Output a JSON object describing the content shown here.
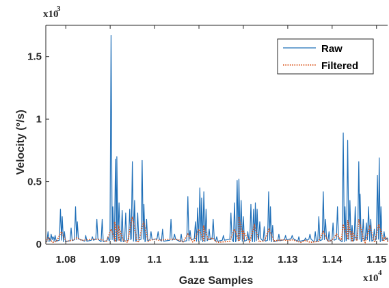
{
  "chart_data": {
    "type": "line",
    "xlabel": "Gaze Samples",
    "ylabel": "Velocity (°/s)",
    "x_multiplier": {
      "base": "x10",
      "exp": "4"
    },
    "y_multiplier": {
      "base": "x10",
      "exp": "3"
    },
    "xlim": [
      1.0755,
      1.1525
    ],
    "ylim": [
      0,
      1.75
    ],
    "x_ticks": [
      {
        "value": 1.08,
        "label": "1.08"
      },
      {
        "value": 1.09,
        "label": "1.09"
      },
      {
        "value": 1.1,
        "label": "1.1"
      },
      {
        "value": 1.11,
        "label": "1.11"
      },
      {
        "value": 1.12,
        "label": "1.12"
      },
      {
        "value": 1.13,
        "label": "1.13"
      },
      {
        "value": 1.14,
        "label": "1.14"
      },
      {
        "value": 1.15,
        "label": "1.15"
      }
    ],
    "y_ticks": [
      {
        "value": 0,
        "label": "0"
      },
      {
        "value": 0.5,
        "label": "0.5"
      },
      {
        "value": 1,
        "label": "1"
      },
      {
        "value": 1.5,
        "label": "1.5"
      }
    ],
    "legend_position": "top-right",
    "series": [
      {
        "name": "Raw",
        "color": "#1f6fb8",
        "style": "solid",
        "peaks": [
          [
            1.076,
            0.1
          ],
          [
            1.0763,
            0.05
          ],
          [
            1.0767,
            0.08
          ],
          [
            1.0771,
            0.06
          ],
          [
            1.0776,
            0.07
          ],
          [
            1.0788,
            0.28
          ],
          [
            1.0792,
            0.22
          ],
          [
            1.0797,
            0.1
          ],
          [
            1.0812,
            0.13
          ],
          [
            1.0822,
            0.3
          ],
          [
            1.0826,
            0.18
          ],
          [
            1.0845,
            0.07
          ],
          [
            1.086,
            0.06
          ],
          [
            1.087,
            0.2
          ],
          [
            1.0882,
            0.2
          ],
          [
            1.0895,
            0.06
          ],
          [
            1.0902,
            1.67
          ],
          [
            1.0906,
            0.3
          ],
          [
            1.0912,
            0.68
          ],
          [
            1.0915,
            0.7
          ],
          [
            1.092,
            0.33
          ],
          [
            1.0927,
            0.27
          ],
          [
            1.0935,
            0.25
          ],
          [
            1.0944,
            0.28
          ],
          [
            1.095,
            0.66
          ],
          [
            1.0955,
            0.35
          ],
          [
            1.0962,
            0.25
          ],
          [
            1.0972,
            0.67
          ],
          [
            1.0976,
            0.32
          ],
          [
            1.0982,
            0.2
          ],
          [
            1.0992,
            0.1
          ],
          [
            1.1008,
            0.1
          ],
          [
            1.1018,
            0.12
          ],
          [
            1.1037,
            0.2
          ],
          [
            1.1045,
            0.08
          ],
          [
            1.106,
            0.08
          ],
          [
            1.1075,
            0.38
          ],
          [
            1.108,
            0.11
          ],
          [
            1.1092,
            0.18
          ],
          [
            1.1097,
            0.29
          ],
          [
            1.1102,
            0.45
          ],
          [
            1.1106,
            0.37
          ],
          [
            1.1111,
            0.42
          ],
          [
            1.1116,
            0.28
          ],
          [
            1.1123,
            0.12
          ],
          [
            1.1132,
            0.2
          ],
          [
            1.114,
            0.06
          ],
          [
            1.1155,
            0.07
          ],
          [
            1.1172,
            0.25
          ],
          [
            1.118,
            0.33
          ],
          [
            1.1186,
            0.51
          ],
          [
            1.119,
            0.52
          ],
          [
            1.1195,
            0.35
          ],
          [
            1.12,
            0.22
          ],
          [
            1.121,
            0.1
          ],
          [
            1.1217,
            0.32
          ],
          [
            1.1223,
            0.28
          ],
          [
            1.1227,
            0.33
          ],
          [
            1.1231,
            0.28
          ],
          [
            1.1237,
            0.18
          ],
          [
            1.1247,
            0.14
          ],
          [
            1.1257,
            0.42
          ],
          [
            1.1261,
            0.3
          ],
          [
            1.1266,
            0.15
          ],
          [
            1.128,
            0.08
          ],
          [
            1.1295,
            0.07
          ],
          [
            1.131,
            0.07
          ],
          [
            1.1325,
            0.06
          ],
          [
            1.134,
            0.05
          ],
          [
            1.135,
            0.08
          ],
          [
            1.1362,
            0.1
          ],
          [
            1.137,
            0.22
          ],
          [
            1.138,
            0.42
          ],
          [
            1.1385,
            0.2
          ],
          [
            1.1393,
            0.1
          ],
          [
            1.1402,
            0.17
          ],
          [
            1.1412,
            0.3
          ],
          [
            1.1425,
            0.89
          ],
          [
            1.1429,
            0.3
          ],
          [
            1.1435,
            0.83
          ],
          [
            1.144,
            0.35
          ],
          [
            1.1445,
            0.15
          ],
          [
            1.1452,
            0.3
          ],
          [
            1.146,
            0.66
          ],
          [
            1.1463,
            0.4
          ],
          [
            1.147,
            0.2
          ],
          [
            1.1477,
            0.17
          ],
          [
            1.1482,
            0.3
          ],
          [
            1.1487,
            0.2
          ],
          [
            1.1495,
            0.12
          ],
          [
            1.1502,
            0.55
          ],
          [
            1.1506,
            0.69
          ],
          [
            1.151,
            0.3
          ],
          [
            1.1517,
            0.1
          ],
          [
            1.1524,
            0.05
          ]
        ]
      },
      {
        "name": "Filtered",
        "color": "#d95319",
        "style": "dotted",
        "peaks": [
          [
            1.076,
            0.05
          ],
          [
            1.079,
            0.1
          ],
          [
            1.0825,
            0.05
          ],
          [
            1.087,
            0.04
          ],
          [
            1.0902,
            0.12
          ],
          [
            1.091,
            0.18
          ],
          [
            1.0918,
            0.15
          ],
          [
            1.095,
            0.22
          ],
          [
            1.0975,
            0.18
          ],
          [
            1.1,
            0.04
          ],
          [
            1.104,
            0.04
          ],
          [
            1.1075,
            0.08
          ],
          [
            1.11,
            0.12
          ],
          [
            1.111,
            0.15
          ],
          [
            1.113,
            0.05
          ],
          [
            1.118,
            0.12
          ],
          [
            1.119,
            0.22
          ],
          [
            1.12,
            0.1
          ],
          [
            1.1225,
            0.15
          ],
          [
            1.1258,
            0.12
          ],
          [
            1.13,
            0.03
          ],
          [
            1.134,
            0.03
          ],
          [
            1.138,
            0.1
          ],
          [
            1.141,
            0.08
          ],
          [
            1.1425,
            0.16
          ],
          [
            1.1435,
            0.19
          ],
          [
            1.1445,
            0.1
          ],
          [
            1.146,
            0.2
          ],
          [
            1.1485,
            0.14
          ],
          [
            1.1505,
            0.16
          ],
          [
            1.152,
            0.06
          ]
        ]
      }
    ]
  }
}
